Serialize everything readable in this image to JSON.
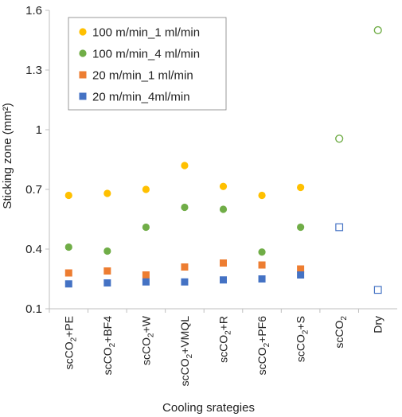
{
  "chart_data": {
    "type": "scatter",
    "xlabel": "Cooling srategies",
    "ylabel": "Sticking zone (mm²)",
    "ylim": [
      0.1,
      1.6
    ],
    "yticks": [
      "0.1",
      "0.4",
      "0.7",
      "1",
      "1.3",
      "1.6"
    ],
    "grid": false,
    "legend_position": "top-left",
    "categories": [
      "scCO₂+PE",
      "scCO₂+BF4",
      "scCO₂+W",
      "scCO₂+VMQL",
      "scCO₂+R",
      "scCO₂+PF6",
      "scCO₂+S",
      "scCO₂",
      "Dry"
    ],
    "series": [
      {
        "name": "100 m/min_1 ml/min",
        "marker": "circle",
        "color": "#FFC000",
        "values": [
          0.67,
          0.68,
          0.7,
          0.82,
          0.715,
          0.67,
          0.71,
          null,
          null
        ]
      },
      {
        "name": "100 m/min_4 ml/min",
        "marker": "circle",
        "color": "#70AD47",
        "values": [
          0.41,
          0.39,
          0.51,
          0.61,
          0.6,
          0.385,
          0.51,
          null,
          null
        ]
      },
      {
        "name": "20 m/min_1 ml/min",
        "marker": "square",
        "color": "#ED7D31",
        "values": [
          0.28,
          0.29,
          0.27,
          0.31,
          0.33,
          0.32,
          0.3,
          null,
          null
        ]
      },
      {
        "name": "20 m/min_4ml/min",
        "marker": "square",
        "color": "#4472C4",
        "values": [
          0.225,
          0.23,
          0.235,
          0.235,
          0.245,
          0.25,
          0.27,
          null,
          null
        ]
      },
      {
        "marker": "circle-open",
        "color": "#70AD47",
        "values": [
          null,
          null,
          null,
          null,
          null,
          null,
          null,
          0.955,
          1.5
        ]
      },
      {
        "marker": "square-open",
        "color": "#4472C4",
        "values": [
          null,
          null,
          null,
          null,
          null,
          null,
          null,
          0.51,
          0.195
        ]
      }
    ]
  }
}
